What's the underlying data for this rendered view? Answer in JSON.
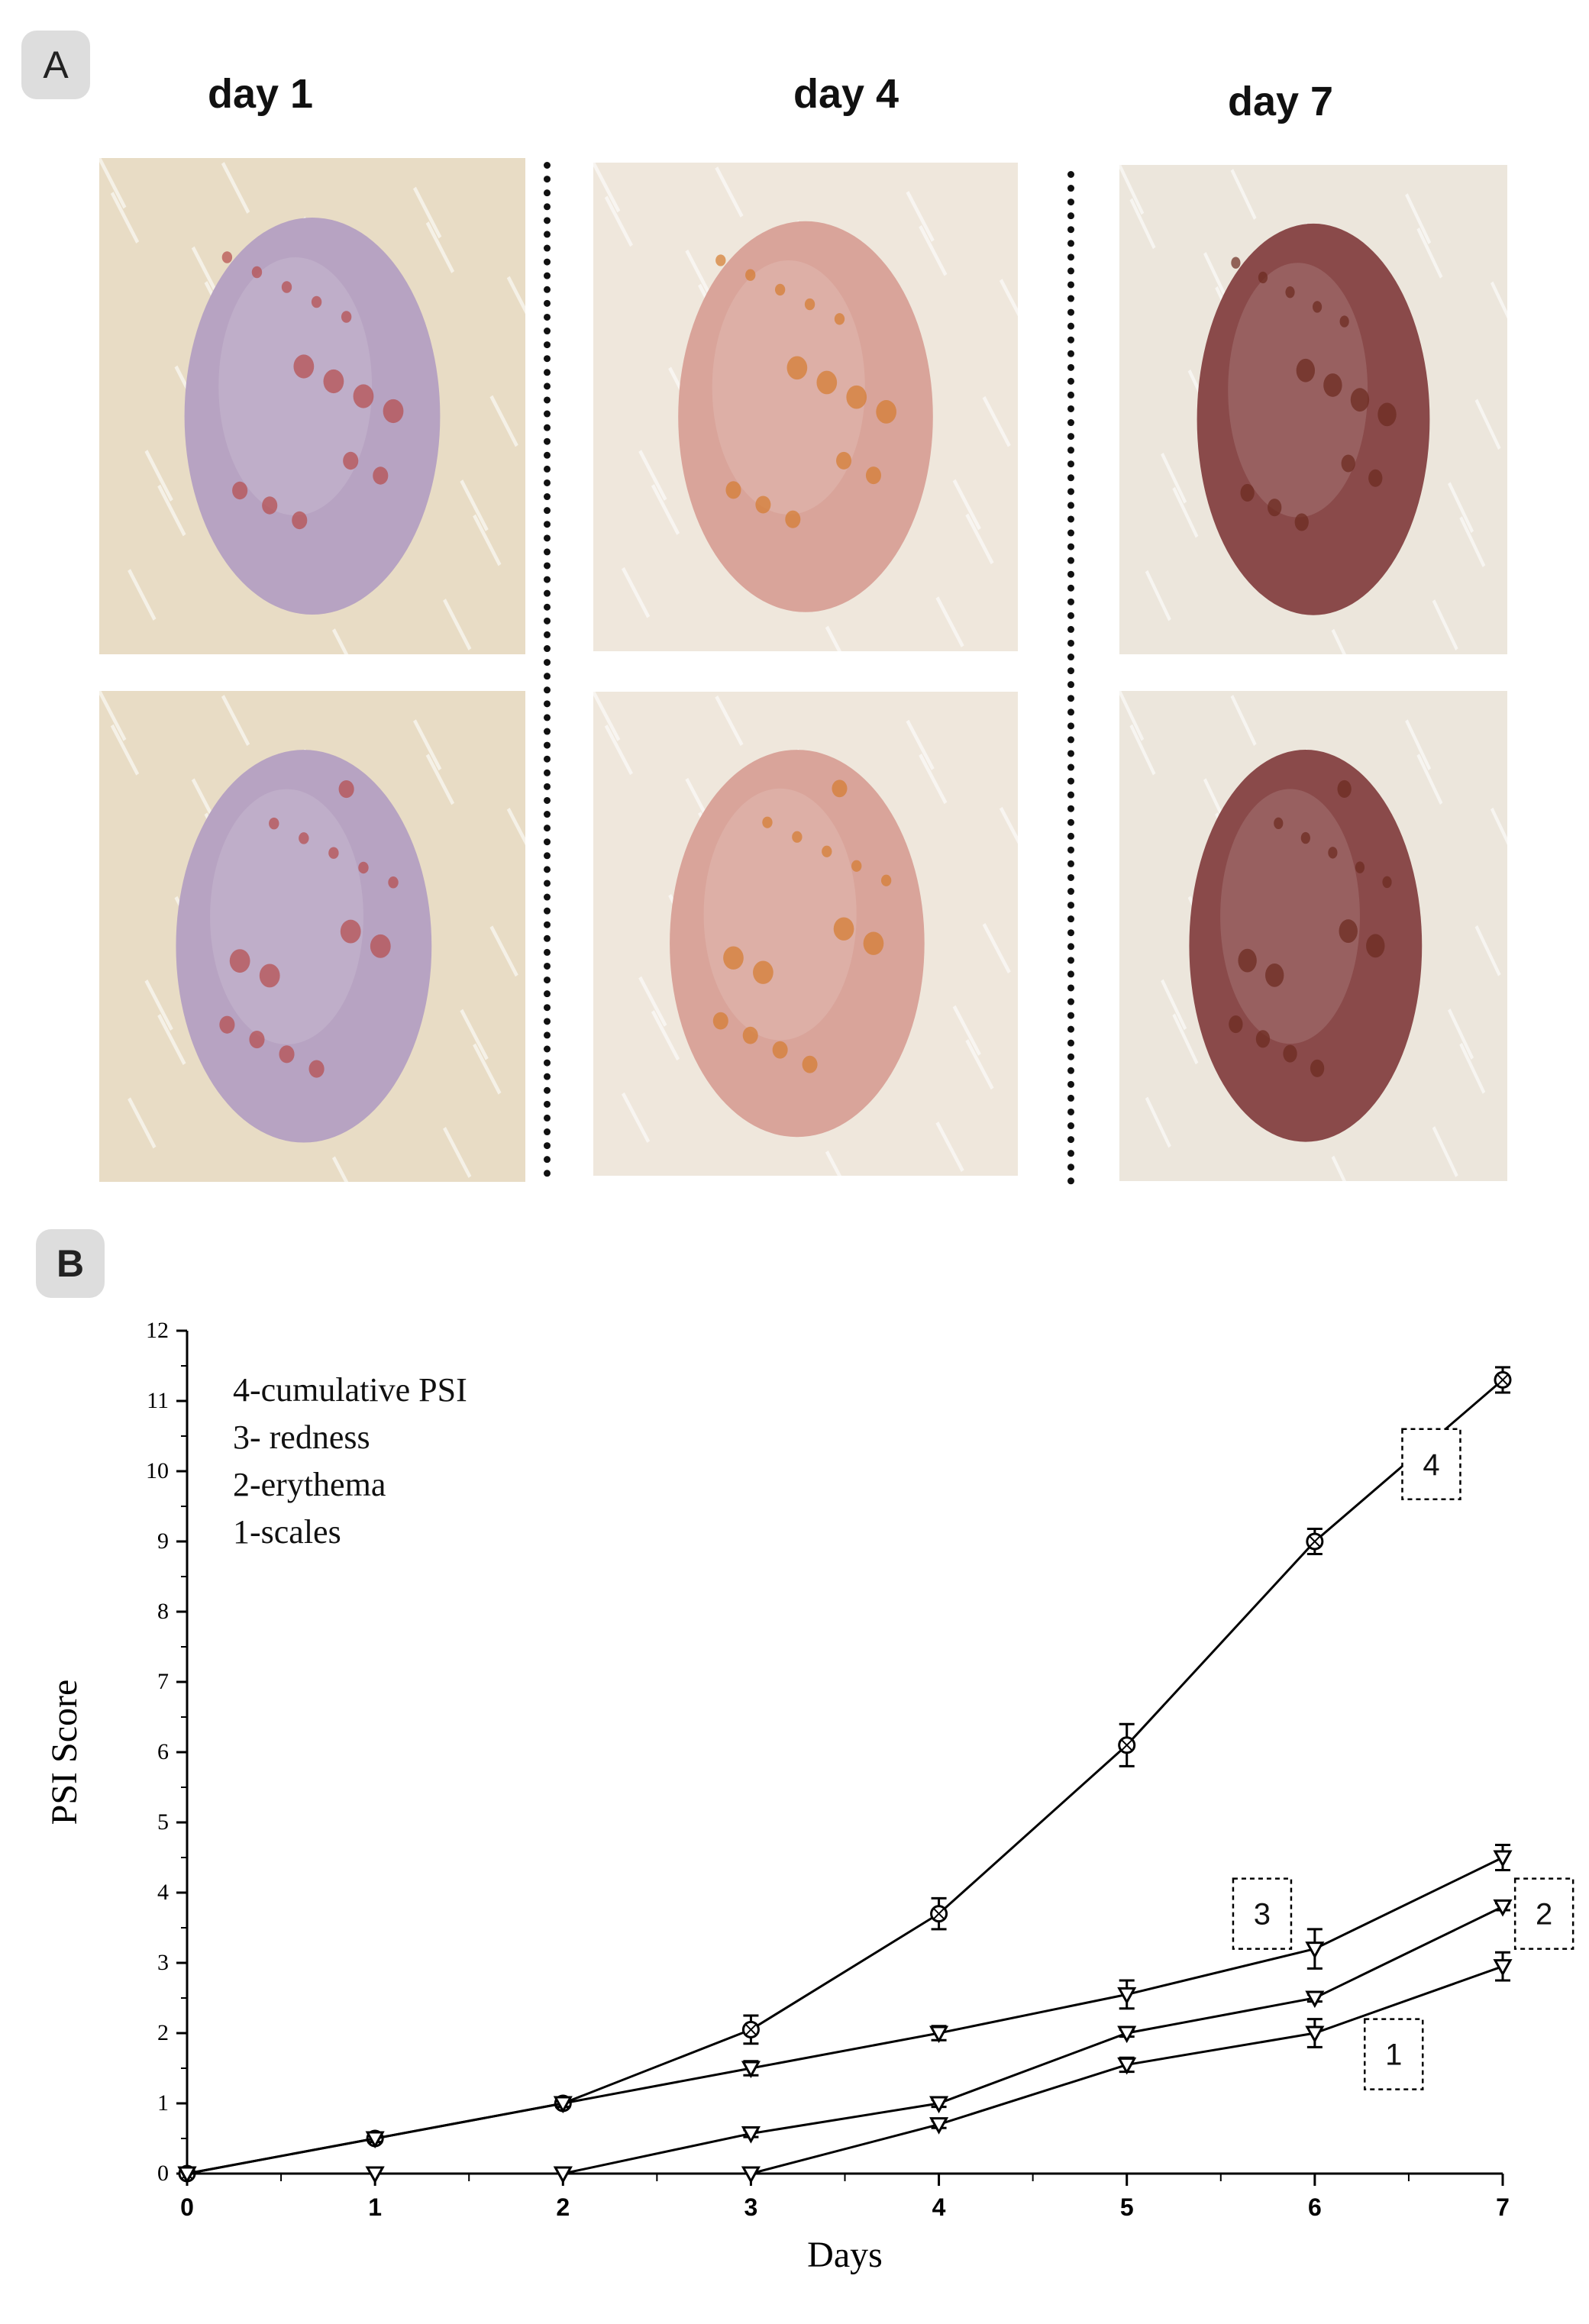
{
  "panel_a": {
    "badge": "A",
    "columns": [
      {
        "label": "day 1",
        "photo_icons": [
          "skin-photo-day1-top-image",
          "skin-photo-day1-bottom-image"
        ],
        "colors": {
          "skin": "#b7a3c2",
          "fur": "#e8dcc5",
          "spot": "#b54a4a"
        }
      },
      {
        "label": "day 4",
        "photo_icons": [
          "skin-photo-day4-top-image",
          "skin-photo-day4-bottom-image"
        ],
        "colors": {
          "skin": "#d9a49a",
          "fur": "#efe7dc",
          "spot": "#d47a2e"
        }
      },
      {
        "label": "day 7",
        "photo_icons": [
          "skin-photo-day7-top-image",
          "skin-photo-day7-bottom-image"
        ],
        "colors": {
          "skin": "#8a4a4a",
          "fur": "#ece6dc",
          "spot": "#6b2a1e"
        }
      }
    ]
  },
  "panel_b": {
    "badge": "B"
  },
  "chart_data": {
    "type": "line",
    "title": "",
    "xlabel": "Days",
    "ylabel": "PSI Score",
    "xlim": [
      0,
      7
    ],
    "ylim": [
      0,
      12
    ],
    "x_ticks": [
      "0",
      "1",
      "2",
      "3",
      "4",
      "5",
      "6",
      "7"
    ],
    "y_ticks": [
      "0",
      "1",
      "2",
      "3",
      "4",
      "5",
      "6",
      "7",
      "8",
      "9",
      "10",
      "11",
      "12"
    ],
    "grid": false,
    "legend_position": "top-left",
    "legend": [
      "4-cumulative PSI",
      "3- redness",
      "2-erythema",
      "1-scales"
    ],
    "series": [
      {
        "label": "4",
        "marker": "circle-x",
        "x": [
          0,
          1,
          2,
          3,
          4,
          5,
          6,
          7
        ],
        "y": [
          0,
          0.5,
          1,
          2.05,
          3.7,
          6.1,
          9.0,
          11.3
        ],
        "error": [
          0,
          0.05,
          0.05,
          0.2,
          0.22,
          0.3,
          0.18,
          0.18
        ]
      },
      {
        "label": "3",
        "marker": "triangle-down",
        "x": [
          0,
          1,
          2,
          3,
          4,
          5,
          6,
          7
        ],
        "y": [
          0,
          0.5,
          1,
          1.5,
          2.0,
          2.55,
          3.2,
          4.5
        ],
        "error": [
          0,
          0.05,
          0.05,
          0.1,
          0.1,
          0.2,
          0.28,
          0.18
        ]
      },
      {
        "label": "2",
        "marker": "triangle-down",
        "x": [
          0,
          1,
          2,
          3,
          4,
          5,
          6,
          7
        ],
        "y": [
          0,
          0,
          0,
          0.57,
          1.0,
          2.0,
          2.5,
          3.8
        ],
        "error": [
          0,
          0,
          0,
          0.05,
          0.05,
          0.05,
          0.05,
          0.05
        ]
      },
      {
        "label": "1",
        "marker": "triangle-down",
        "x": [
          0,
          1,
          2,
          3,
          4,
          5,
          6,
          7
        ],
        "y": [
          0,
          0,
          0,
          0,
          0.7,
          1.55,
          2.0,
          2.95
        ],
        "error": [
          0,
          0,
          0,
          0,
          0.05,
          0.1,
          0.2,
          0.2
        ]
      }
    ],
    "annotations": [
      {
        "text": "4",
        "x": 6.62,
        "y": 10.1
      },
      {
        "text": "3",
        "x": 5.72,
        "y": 3.7
      },
      {
        "text": "2",
        "x": 7.22,
        "y": 3.7
      },
      {
        "text": "1",
        "x": 6.42,
        "y": 1.7
      }
    ]
  }
}
